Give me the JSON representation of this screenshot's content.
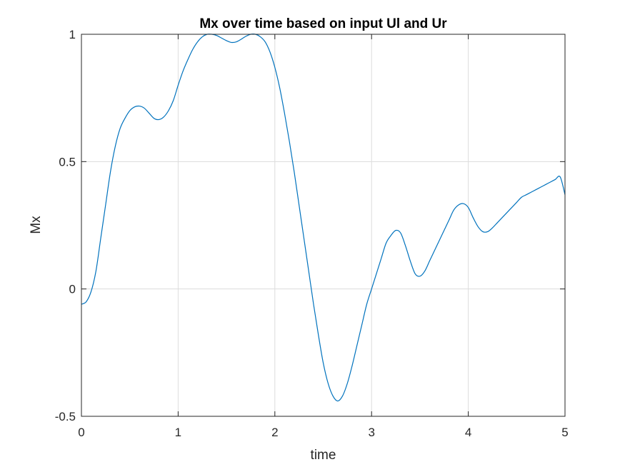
{
  "chart_data": {
    "type": "line",
    "title": "Mx over time based on input Ul and Ur",
    "xlabel": "time",
    "ylabel": "Mx",
    "xlim": [
      0,
      5
    ],
    "ylim": [
      -0.5,
      1
    ],
    "grid": true,
    "x_ticks": [
      0,
      1,
      2,
      3,
      4,
      5
    ],
    "x_tick_labels": [
      "0",
      "1",
      "2",
      "3",
      "4",
      "5"
    ],
    "y_ticks": [
      -0.5,
      0,
      0.5,
      1
    ],
    "y_tick_labels": [
      "-0.5",
      "0",
      "0.5",
      "1"
    ],
    "series_color": "#0072BD",
    "series": [
      {
        "x": [
          0,
          0.05,
          0.1,
          0.15,
          0.2,
          0.25,
          0.3,
          0.35,
          0.4,
          0.45,
          0.5,
          0.55,
          0.6,
          0.65,
          0.7,
          0.75,
          0.8,
          0.85,
          0.9,
          0.95,
          1.0,
          1.05,
          1.1,
          1.15,
          1.2,
          1.25,
          1.3,
          1.35,
          1.4,
          1.45,
          1.5,
          1.55,
          1.6,
          1.65,
          1.7,
          1.75,
          1.8,
          1.85,
          1.9,
          1.95,
          2.0,
          2.05,
          2.1,
          2.15,
          2.2,
          2.25,
          2.3,
          2.35,
          2.4,
          2.45,
          2.5,
          2.55,
          2.6,
          2.65,
          2.7,
          2.75,
          2.8,
          2.85,
          2.9,
          2.95,
          3.0,
          3.05,
          3.1,
          3.15,
          3.2,
          3.25,
          3.3,
          3.35,
          3.4,
          3.45,
          3.5,
          3.55,
          3.6,
          3.65,
          3.7,
          3.75,
          3.8,
          3.85,
          3.9,
          3.95,
          4.0,
          4.05,
          4.1,
          4.15,
          4.2,
          4.25,
          4.3,
          4.35,
          4.4,
          4.45,
          4.5,
          4.55,
          4.6,
          4.65,
          4.7,
          4.75,
          4.8,
          4.85,
          4.9,
          4.95,
          5.0
        ],
        "y": [
          -0.06,
          -0.05,
          -0.01,
          0.07,
          0.2,
          0.33,
          0.46,
          0.56,
          0.63,
          0.67,
          0.7,
          0.715,
          0.718,
          0.71,
          0.69,
          0.67,
          0.665,
          0.675,
          0.7,
          0.74,
          0.8,
          0.855,
          0.9,
          0.94,
          0.97,
          0.99,
          1.0,
          1.0,
          0.995,
          0.985,
          0.975,
          0.968,
          0.97,
          0.98,
          0.992,
          1.0,
          1.0,
          0.99,
          0.97,
          0.93,
          0.87,
          0.79,
          0.69,
          0.58,
          0.46,
          0.33,
          0.2,
          0.07,
          -0.06,
          -0.18,
          -0.29,
          -0.37,
          -0.42,
          -0.44,
          -0.42,
          -0.37,
          -0.3,
          -0.22,
          -0.14,
          -0.06,
          0.0,
          0.06,
          0.12,
          0.18,
          0.21,
          0.23,
          0.22,
          0.17,
          0.11,
          0.06,
          0.05,
          0.07,
          0.11,
          0.15,
          0.19,
          0.23,
          0.27,
          0.31,
          0.33,
          0.335,
          0.32,
          0.28,
          0.245,
          0.225,
          0.225,
          0.24,
          0.26,
          0.28,
          0.3,
          0.32,
          0.34,
          0.36,
          0.37,
          0.38,
          0.39,
          0.4,
          0.41,
          0.42,
          0.43,
          0.44,
          0.37
        ]
      }
    ]
  }
}
